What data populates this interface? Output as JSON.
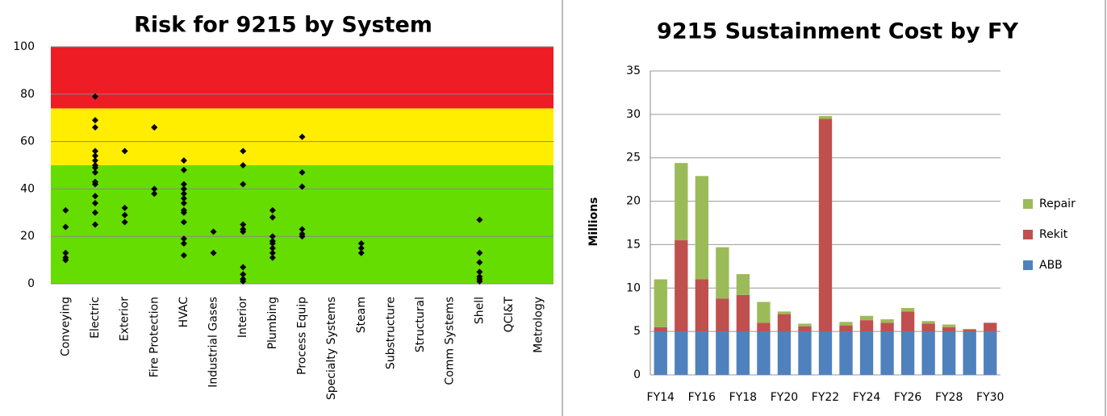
{
  "chart_data": [
    {
      "type": "strip",
      "title": "Risk for 9215 by System",
      "categories": [
        "Conveying",
        "Electric",
        "Exterior",
        "Fire Protection",
        "HVAC",
        "Industrial Gases",
        "Interior",
        "Plumbing",
        "Process Equip",
        "Specialty Systems",
        "Steam",
        "Substructure",
        "Structural",
        "Comm Systems",
        "Shell",
        "QCI&T",
        "Metrology"
      ],
      "values": [
        [
          31,
          24,
          13,
          11,
          10
        ],
        [
          79,
          69,
          66,
          56,
          54,
          52,
          50,
          49,
          47,
          43,
          42,
          37,
          34,
          30,
          25
        ],
        [
          56,
          32,
          29,
          26
        ],
        [
          66,
          66,
          40,
          38
        ],
        [
          52,
          48,
          42,
          40,
          38,
          36,
          34,
          31,
          30,
          26,
          19,
          17,
          12
        ],
        [
          22,
          13
        ],
        [
          56,
          50,
          42,
          25,
          23,
          22,
          7,
          4,
          2,
          1
        ],
        [
          31,
          28,
          20,
          18,
          17,
          15,
          13,
          11
        ],
        [
          62,
          47,
          41,
          23,
          21,
          20
        ],
        [],
        [
          17,
          15,
          13
        ],
        [],
        [],
        [],
        [
          27,
          13,
          9,
          5,
          3,
          2,
          1
        ],
        [],
        []
      ],
      "color": "#000000",
      "bands": [
        {
          "from": 0,
          "to": 50,
          "color": "#66dd00"
        },
        {
          "from": 50,
          "to": 74,
          "color": "#ffee00"
        },
        {
          "from": 74,
          "to": 100,
          "color": "#ee1c24"
        }
      ],
      "ylim": [
        0,
        100
      ],
      "yticks": [
        0,
        20,
        40,
        60,
        80,
        100
      ],
      "grid": true
    },
    {
      "type": "stacked_bar",
      "title": "9215 Sustainment Cost by FY",
      "ylabel": "Millions",
      "categories": [
        "FY14",
        null,
        "FY16",
        null,
        "FY18",
        null,
        "FY20",
        null,
        "FY22",
        null,
        "FY24",
        null,
        "FY26",
        null,
        "FY28",
        null,
        "FY30"
      ],
      "series": [
        {
          "name": "ABB",
          "color": "#4f81bd",
          "values": [
            5,
            5,
            5,
            5,
            5,
            5,
            5,
            5,
            5,
            5,
            5,
            5,
            5,
            5,
            5,
            5,
            5
          ]
        },
        {
          "name": "Rekit",
          "color": "#c0504d",
          "values": [
            0.5,
            10.5,
            6,
            3.8,
            4.2,
            1,
            2,
            0.6,
            24.5,
            0.7,
            1.3,
            1,
            2.3,
            0.9,
            0.5,
            0.2,
            1
          ]
        },
        {
          "name": "Repair",
          "color": "#9bbb59",
          "values": [
            5.5,
            8.9,
            11.9,
            5.9,
            2.4,
            2.4,
            0.3,
            0.3,
            0.3,
            0.4,
            0.5,
            0.4,
            0.4,
            0.3,
            0.3,
            0.1,
            0
          ]
        }
      ],
      "ylim": [
        0,
        35
      ],
      "yticks": [
        0,
        5,
        10,
        15,
        20,
        25,
        30,
        35
      ],
      "grid": true,
      "legend": "right"
    }
  ]
}
